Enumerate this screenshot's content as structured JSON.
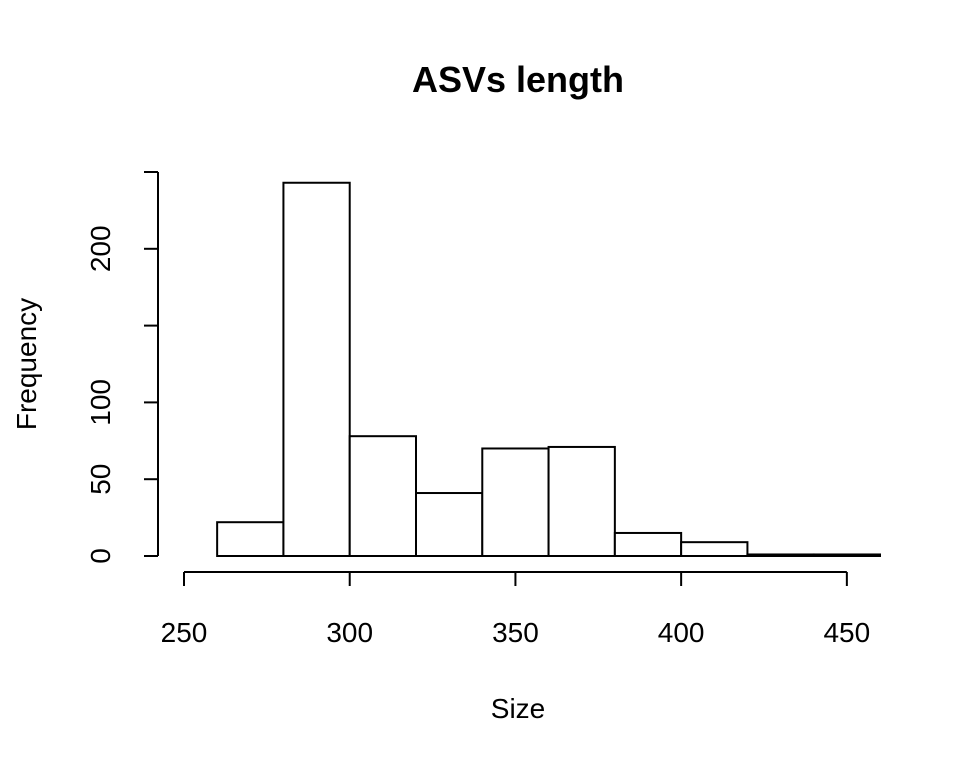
{
  "chart_data": {
    "type": "bar",
    "title": "ASVs length",
    "xlabel": "Size",
    "ylabel": "Frequency",
    "bins": [
      {
        "start": 260,
        "end": 280,
        "count": 22
      },
      {
        "start": 280,
        "end": 300,
        "count": 243
      },
      {
        "start": 300,
        "end": 320,
        "count": 78
      },
      {
        "start": 320,
        "end": 340,
        "count": 41
      },
      {
        "start": 340,
        "end": 360,
        "count": 70
      },
      {
        "start": 360,
        "end": 380,
        "count": 71
      },
      {
        "start": 380,
        "end": 400,
        "count": 15
      },
      {
        "start": 400,
        "end": 420,
        "count": 9
      },
      {
        "start": 420,
        "end": 440,
        "count": 1
      },
      {
        "start": 440,
        "end": 460,
        "count": 1
      }
    ],
    "xlim": [
      250,
      460
    ],
    "ylim": [
      0,
      250
    ],
    "x_ticks": [
      250,
      300,
      350,
      400,
      450
    ],
    "y_ticks": [
      0,
      50,
      100,
      150,
      200,
      250
    ],
    "y_tick_labels": [
      "0",
      "50",
      "100",
      "",
      "200",
      ""
    ],
    "grid": false,
    "legend": "none"
  }
}
